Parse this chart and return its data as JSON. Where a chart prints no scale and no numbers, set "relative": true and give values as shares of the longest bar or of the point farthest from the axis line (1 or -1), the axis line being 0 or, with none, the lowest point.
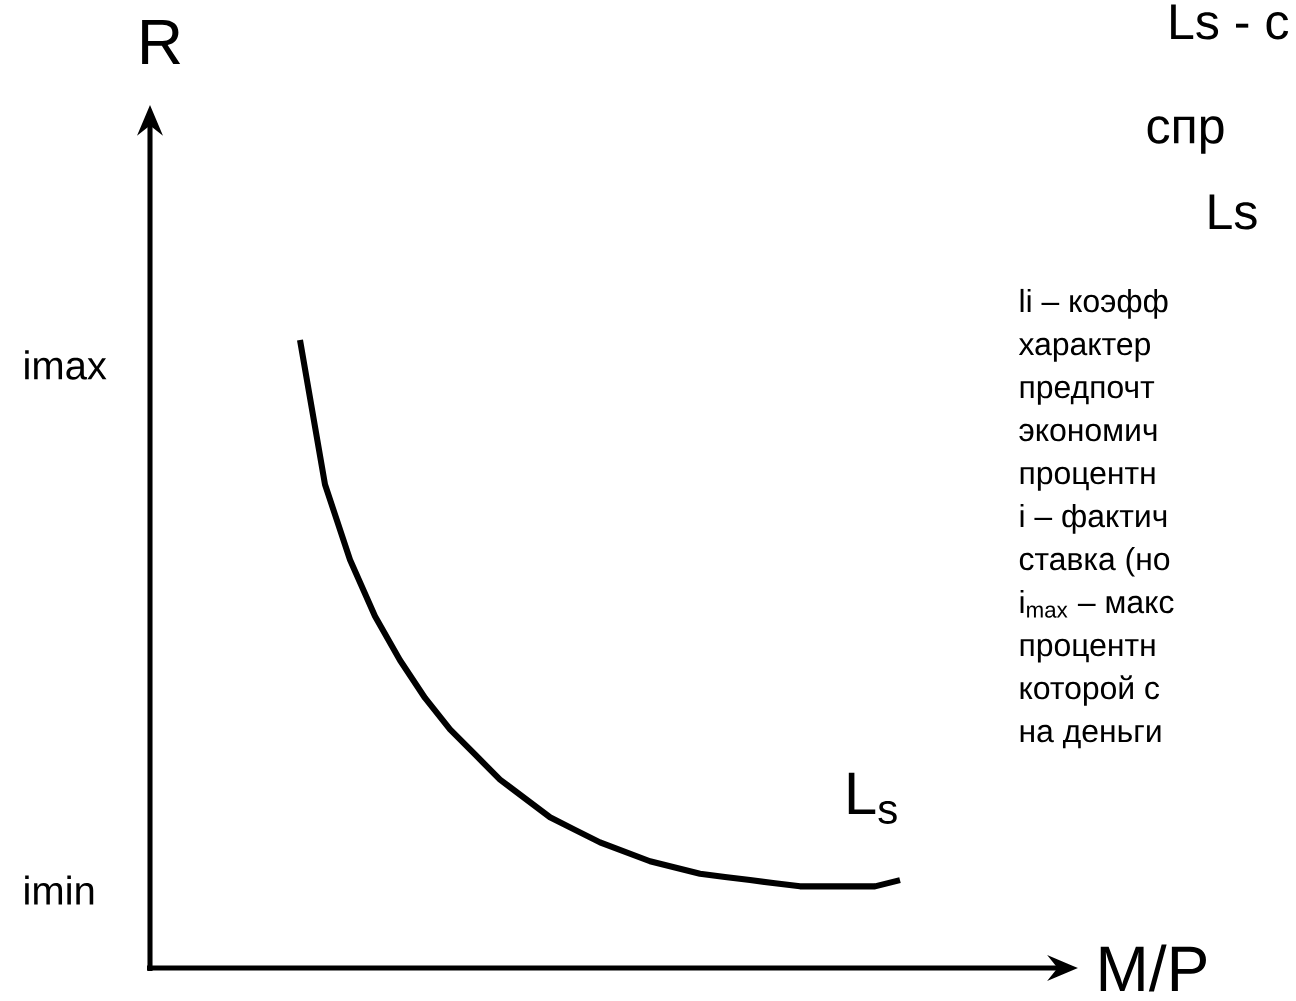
{
  "chart_data": {
    "type": "line",
    "relative": true,
    "title": "Ls - с",
    "subtitle": "спр",
    "xlabel": "M/P",
    "ylabel": "R",
    "categories": [
      null,
      null,
      null,
      null,
      null,
      null,
      null,
      null,
      null,
      null,
      null,
      null,
      null,
      null,
      null,
      null,
      null,
      null,
      null,
      null,
      null,
      null,
      null,
      null,
      null
    ],
    "series": [
      {
        "name": "L$_{s}$",
        "color": "#000000",
        "values": [
          1,
          0.77,
          0.65,
          0.56,
          0.49,
          0.43,
          0.38,
          0.34,
          0.3,
          0.27,
          0.24,
          0.22,
          0.2,
          0.185,
          0.17,
          0.16,
          0.15,
          0.145,
          0.14,
          0.135,
          0.13,
          0.13,
          0.13,
          0.13,
          0.14
        ]
      }
    ],
    "annotations": [
      "imax",
      "imin",
      "Ls",
      "li – коэфф",
      "характер",
      "предпочт",
      "экономич",
      "процентн",
      "i – фактич",
      "ставка (но",
      "i$_{max}$ – макс",
      "процентн",
      "которой с",
      "на деньги"
    ]
  }
}
